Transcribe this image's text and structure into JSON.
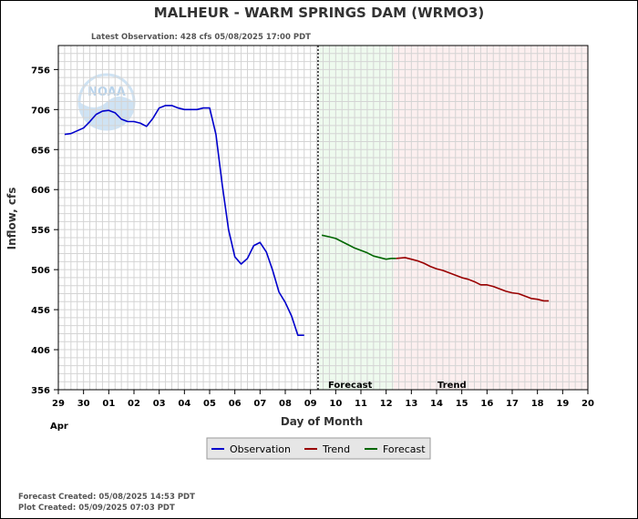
{
  "chart_data": {
    "type": "line",
    "title": "MALHEUR - WARM SPRINGS DAM  (WRMO3)",
    "subtitle": "Latest Observation: 428 cfs 05/08/2025 17:00 PDT",
    "xlabel": "Day of Month",
    "ylabel": "Inflow, cfs",
    "month_label": "Apr",
    "xlim": [
      29,
      20
    ],
    "x_ticks": [
      "29",
      "30",
      "01",
      "02",
      "03",
      "04",
      "05",
      "06",
      "07",
      "08",
      "09",
      "10",
      "11",
      "12",
      "13",
      "14",
      "15",
      "16",
      "17",
      "18",
      "19",
      "20"
    ],
    "ylim": [
      356,
      786
    ],
    "y_ticks": [
      356,
      406,
      456,
      506,
      556,
      606,
      656,
      706,
      756
    ],
    "grid": true,
    "zones": [
      {
        "label": "Forecast",
        "start_day": 9.35,
        "end_day": 12.3,
        "color": "#eefaee"
      },
      {
        "label": "Trend",
        "start_day": 12.3,
        "end_day": 20,
        "color": "#fcefef"
      }
    ],
    "divider_day": 9.3,
    "series": [
      {
        "name": "Observation",
        "color": "#0000cc",
        "x": [
          0.25,
          0.5,
          1.0,
          1.25,
          1.5,
          1.75,
          2.0,
          2.25,
          2.5,
          2.75,
          3.0,
          3.25,
          3.5,
          3.75,
          4.0,
          4.25,
          4.5,
          4.75,
          5.0,
          5.25,
          5.5,
          5.75,
          6.0,
          6.25,
          6.5,
          6.75,
          7.0,
          7.25,
          7.5,
          7.75,
          8.0,
          8.25,
          8.5,
          8.75,
          9.0,
          9.25,
          9.5,
          9.75
        ],
        "y": [
          675,
          676,
          683,
          691,
          700,
          704,
          705,
          702,
          694,
          691,
          691,
          689,
          685,
          695,
          708,
          711,
          711,
          708,
          706,
          706,
          706,
          708,
          708,
          675,
          612,
          556,
          522,
          513,
          520,
          536,
          540,
          528,
          505,
          478,
          465,
          448,
          424,
          424
        ],
        "display_days": [
          null
        ]
      },
      {
        "name": "Forecast",
        "color": "#006600",
        "x": [
          10.45,
          10.75,
          11.0,
          11.25,
          11.5,
          11.75,
          12.0,
          12.25,
          12.5,
          12.75,
          13.0,
          13.2,
          13.4
        ],
        "y": [
          549,
          547,
          545,
          541,
          537,
          533,
          530,
          527,
          523,
          521,
          519,
          520,
          520
        ]
      },
      {
        "name": "Trend",
        "color": "#990000",
        "x": [
          13.4,
          13.75,
          14.0,
          14.25,
          14.5,
          14.75,
          15.0,
          15.25,
          15.5,
          15.75,
          16.0,
          16.25,
          16.5,
          16.75,
          17.0,
          17.25,
          17.5,
          17.75,
          18.0,
          18.25,
          18.5,
          18.75,
          19.0,
          19.25,
          19.45
        ],
        "y": [
          520,
          521,
          519,
          517,
          514,
          510,
          507,
          505,
          502,
          499,
          496,
          494,
          491,
          487,
          487,
          485,
          482,
          479,
          477,
          476,
          473,
          470,
          469,
          467,
          467
        ]
      }
    ],
    "legend": {
      "placement": "bottom",
      "items": [
        "Observation",
        "Trend",
        "Forecast"
      ]
    }
  },
  "footer": {
    "forecast_created": "Forecast Created: 05/08/2025 14:53 PDT",
    "plot_created": "Plot Created: 05/09/2025 07:03 PDT"
  },
  "logo": {
    "text": "NOAA",
    "color": "#cfe3f4"
  }
}
